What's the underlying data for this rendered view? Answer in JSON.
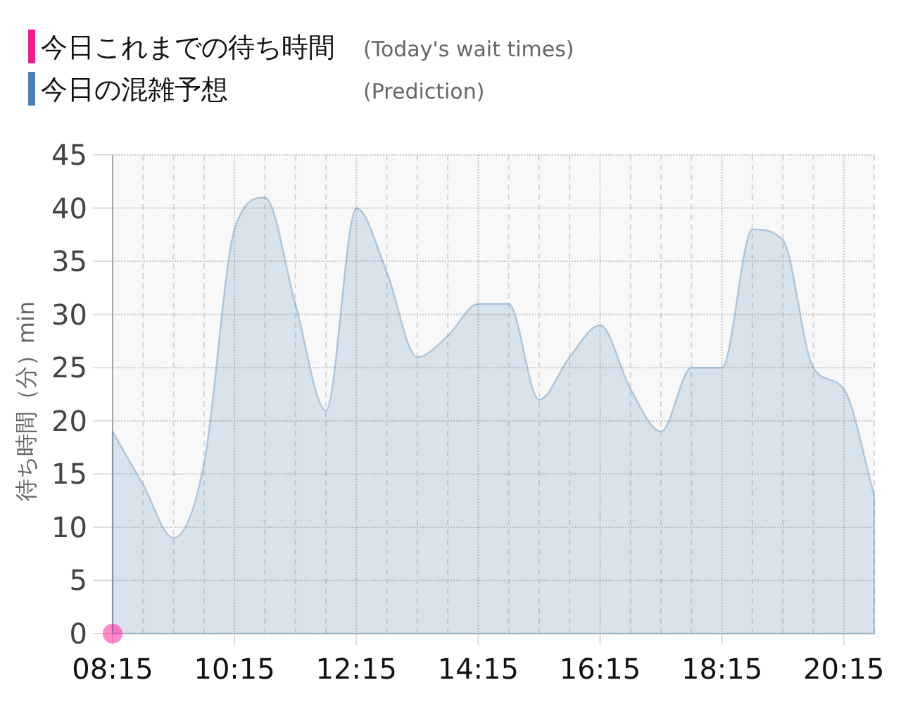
{
  "chart_data": {
    "type": "area",
    "ylabel": "待ち時間（分）min",
    "x": [
      8.25,
      8.75,
      9.25,
      9.75,
      10.25,
      10.75,
      11.25,
      11.75,
      12.25,
      12.75,
      13.25,
      13.75,
      14.25,
      14.75,
      15.25,
      15.75,
      16.25,
      16.75,
      17.25,
      17.75,
      18.25,
      18.75,
      19.25,
      19.75,
      20.25,
      20.75
    ],
    "series": [
      {
        "name": "今日これまでの待ち時間 (Today's wait times)",
        "type": "scatter",
        "marker": "circle",
        "color": "#ff1493",
        "x": [
          8.25
        ],
        "values": [
          0
        ]
      },
      {
        "name": "今日の混雑予想 (Prediction)",
        "color": "#4682b4",
        "values": [
          19,
          14,
          9,
          16,
          38,
          41,
          31,
          21,
          40,
          34,
          26,
          28,
          31,
          31,
          22,
          26,
          29,
          23,
          19,
          25,
          25,
          38,
          37,
          25,
          23,
          13
        ]
      }
    ],
    "xlim": [
      8.25,
      20.75
    ],
    "xticks": [
      {
        "value": 8.25,
        "label": "08:15"
      },
      {
        "value": 8.75,
        "label": null
      },
      {
        "value": 9.25,
        "label": null
      },
      {
        "value": 9.75,
        "label": null
      },
      {
        "value": 10.25,
        "label": "10:15"
      },
      {
        "value": 10.75,
        "label": null
      },
      {
        "value": 11.25,
        "label": null
      },
      {
        "value": 11.75,
        "label": null
      },
      {
        "value": 12.25,
        "label": "12:15"
      },
      {
        "value": 12.75,
        "label": null
      },
      {
        "value": 13.25,
        "label": null
      },
      {
        "value": 13.75,
        "label": null
      },
      {
        "value": 14.25,
        "label": "14:15"
      },
      {
        "value": 14.75,
        "label": null
      },
      {
        "value": 15.25,
        "label": null
      },
      {
        "value": 15.75,
        "label": null
      },
      {
        "value": 16.25,
        "label": "16:15"
      },
      {
        "value": 16.75,
        "label": null
      },
      {
        "value": 17.25,
        "label": null
      },
      {
        "value": 17.75,
        "label": null
      },
      {
        "value": 18.25,
        "label": "18:15"
      },
      {
        "value": 18.75,
        "label": null
      },
      {
        "value": 19.25,
        "label": null
      },
      {
        "value": 19.75,
        "label": null
      },
      {
        "value": 20.25,
        "label": "20:15"
      },
      {
        "value": 20.75,
        "label": null
      }
    ],
    "ylim": [
      0,
      45
    ],
    "yticks": [
      0,
      5,
      10,
      15,
      20,
      25,
      30,
      35,
      40,
      45
    ],
    "grid": true,
    "legend": "top left"
  }
}
